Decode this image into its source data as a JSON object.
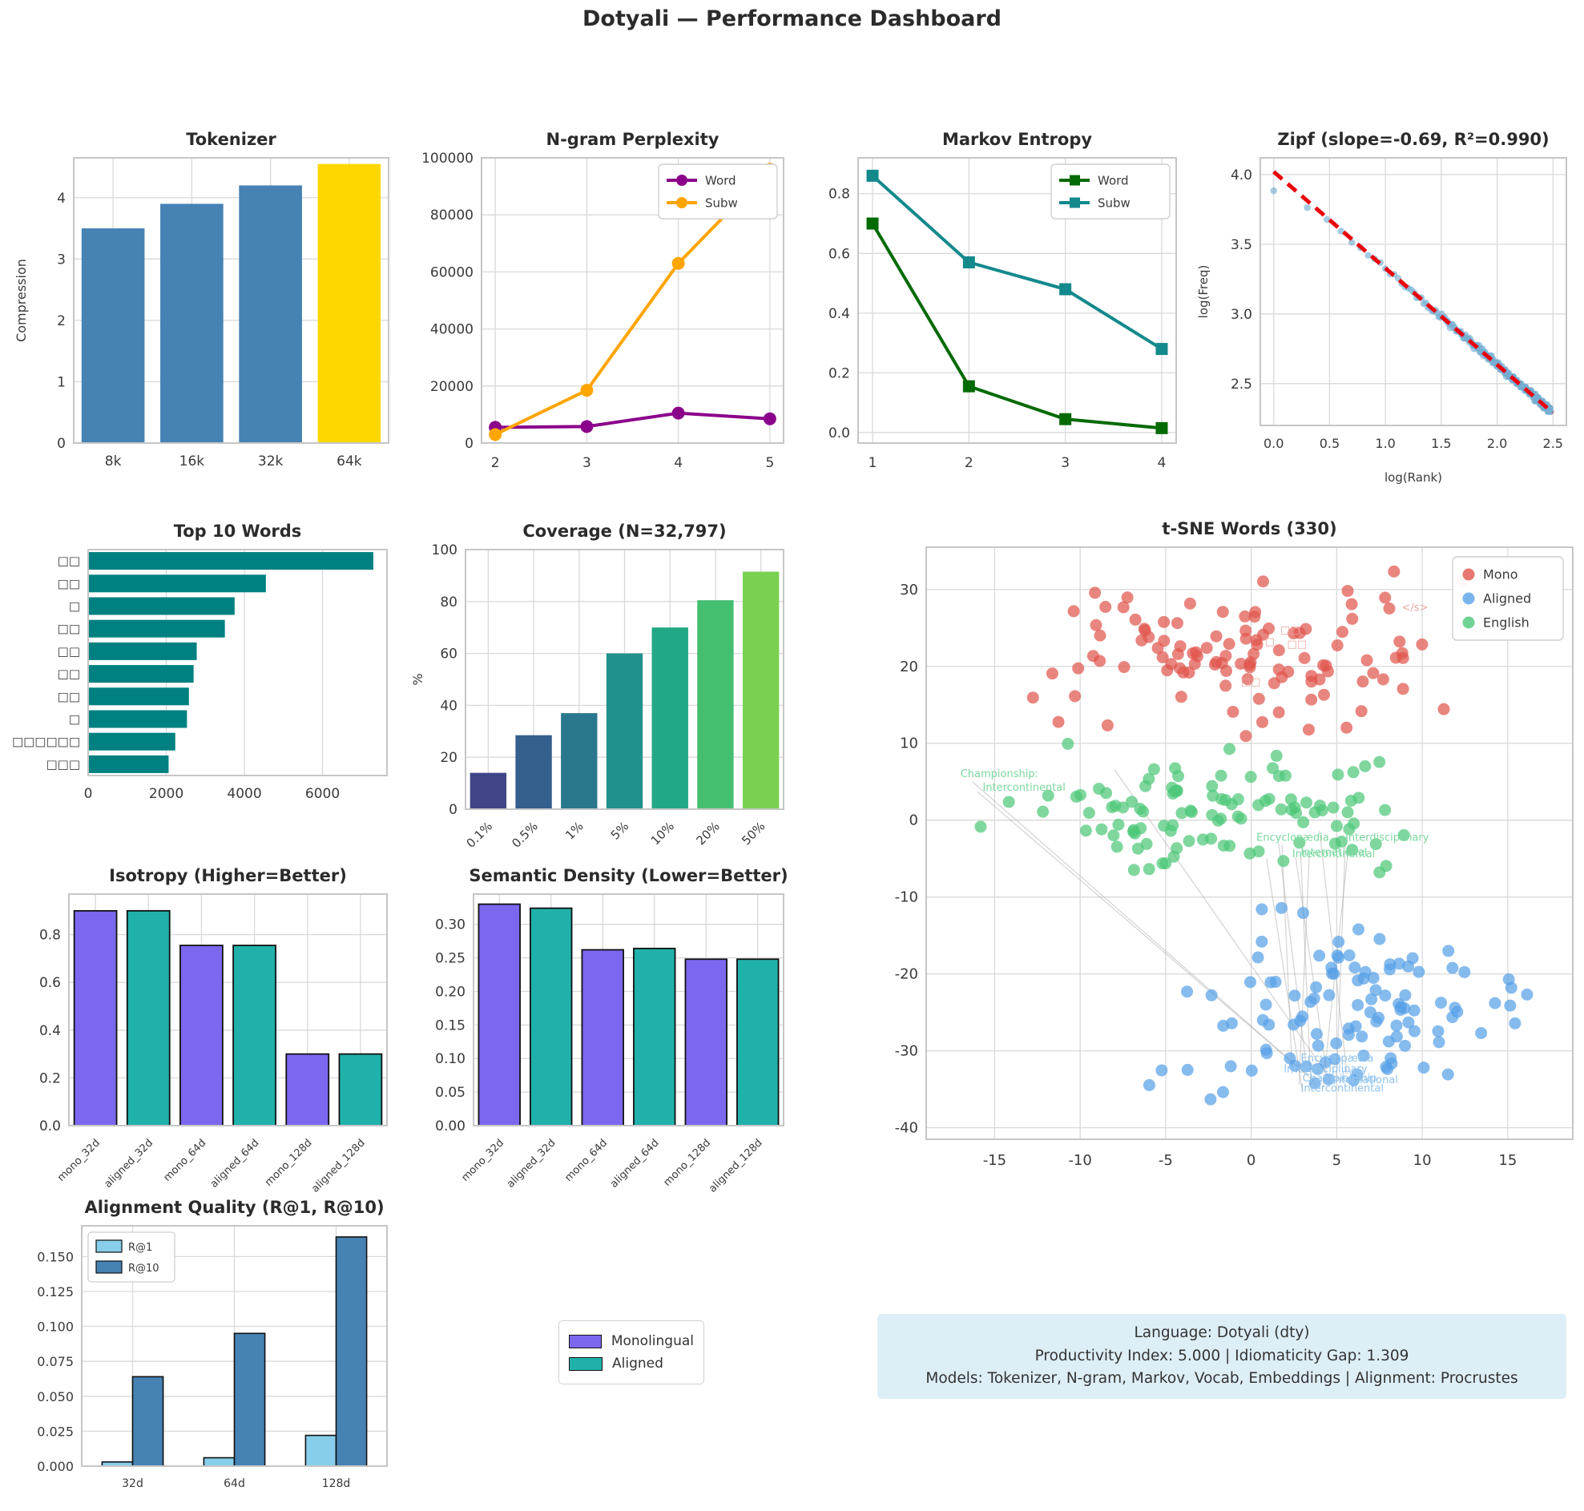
{
  "page": {
    "title": "Dotyali — Performance Dashboard"
  },
  "legend_box": {
    "items": [
      {
        "label": "Monolingual",
        "color": "#7B68EE"
      },
      {
        "label": "Aligned",
        "color": "#20B2AA"
      }
    ]
  },
  "info_box": {
    "lines": [
      "Language: Dotyali (dty)",
      "Productivity Index: 5.000  |  Idiomaticity Gap: 1.309",
      "Models: Tokenizer, N-gram, Markov, Vocab, Embeddings  |  Alignment: Procrustes"
    ]
  },
  "chart_data": {
    "tokenizer": {
      "type": "bar",
      "title": "Tokenizer",
      "categories": [
        "8k",
        "16k",
        "32k",
        "64k"
      ],
      "values": [
        3.5,
        3.9,
        4.2,
        4.55
      ],
      "colors": [
        "#4682B4",
        "#4682B4",
        "#4682B4",
        "#FFD700"
      ],
      "ylabel": "Compression",
      "ylim": [
        0,
        4.65
      ],
      "ytick_vals": [
        0,
        1,
        2,
        3,
        4
      ],
      "ytick_labels": [
        "0",
        "1",
        "2",
        "3",
        "4"
      ]
    },
    "ngram": {
      "type": "line",
      "title": "N-gram Perplexity",
      "x": [
        2,
        3,
        4,
        5
      ],
      "series": [
        {
          "name": "Word",
          "color": "#8B008B",
          "marker": "circle",
          "values": [
            5500,
            5800,
            10500,
            8500
          ]
        },
        {
          "name": "Subw",
          "color": "#FFA500",
          "marker": "circle",
          "values": [
            3000,
            18500,
            63000,
            96000
          ]
        }
      ],
      "xlim": [
        1.85,
        5.15
      ],
      "ylim": [
        0,
        100000
      ],
      "xtick_vals": [
        2,
        3,
        4,
        5
      ],
      "xtick_labels": [
        "2",
        "3",
        "4",
        "5"
      ],
      "ytick_vals": [
        0,
        20000,
        40000,
        60000,
        80000,
        100000
      ],
      "ytick_labels": [
        "0",
        "20000",
        "40000",
        "60000",
        "80000",
        "100000"
      ],
      "legend_pos": "tr"
    },
    "markov": {
      "type": "line",
      "title": "Markov Entropy",
      "x": [
        1,
        2,
        3,
        4
      ],
      "series": [
        {
          "name": "Word",
          "color": "#046A04",
          "marker": "square",
          "values": [
            0.7,
            0.155,
            0.045,
            0.015
          ]
        },
        {
          "name": "Subw",
          "color": "#13898C",
          "marker": "square",
          "values": [
            0.86,
            0.57,
            0.48,
            0.28
          ]
        }
      ],
      "xlim": [
        0.85,
        4.15
      ],
      "ylim": [
        -0.035,
        0.92
      ],
      "xtick_vals": [
        1,
        2,
        3,
        4
      ],
      "xtick_labels": [
        "1",
        "2",
        "3",
        "4"
      ],
      "ytick_vals": [
        0.0,
        0.2,
        0.4,
        0.6,
        0.8
      ],
      "ytick_labels": [
        "0.0",
        "0.2",
        "0.4",
        "0.6",
        "0.8"
      ],
      "legend_pos": "tr"
    },
    "zipf": {
      "type": "scatter",
      "title": "Zipf (slope=-0.69, R²=0.990)",
      "xlabel": "log(Rank)",
      "ylabel": "log(Freq)",
      "xlim": [
        -0.12,
        2.62
      ],
      "ylim": [
        2.2,
        4.12
      ],
      "xtick_vals": [
        0.0,
        0.5,
        1.0,
        1.5,
        2.0,
        2.5
      ],
      "xtick_labels": [
        "0.0",
        "0.5",
        "1.0",
        "1.5",
        "2.0",
        "2.5"
      ],
      "ytick_vals": [
        2.5,
        3.0,
        3.5,
        4.0
      ],
      "ytick_labels": [
        "2.5",
        "3.0",
        "3.5",
        "4.0"
      ],
      "point_color": "#74ADD1",
      "n_ranks": 300,
      "intercept": 4.02,
      "slope": -0.692,
      "first_dip": 0.14,
      "dip_rate": 1.2,
      "noise": 0.018,
      "seed": 42,
      "trend": {
        "color": "#E8000B",
        "x0": 0.0,
        "y0": 4.02,
        "x1": 2.5,
        "y1": 2.29
      }
    },
    "top_words": {
      "type": "hbar",
      "title": "Top 10 Words",
      "labels": [
        "□□",
        "□□",
        "□",
        "□□",
        "□□",
        "□□",
        "□□",
        "□",
        "□□□□□□",
        "□□□"
      ],
      "values": [
        7300,
        4550,
        3750,
        3500,
        2780,
        2700,
        2580,
        2530,
        2230,
        2060
      ],
      "color": "#008080",
      "xlim": [
        0,
        7650
      ],
      "xtick_vals": [
        0,
        2000,
        4000,
        6000
      ],
      "xtick_labels": [
        "0",
        "2000",
        "4000",
        "6000"
      ]
    },
    "coverage": {
      "type": "bar",
      "title": "Coverage (N=32,797)",
      "categories": [
        "0.1%",
        "0.5%",
        "1%",
        "5%",
        "10%",
        "20%",
        "50%"
      ],
      "values": [
        14,
        28.5,
        37,
        60,
        70,
        80.5,
        91.5
      ],
      "colors": [
        "#414487",
        "#355F8D",
        "#2A788E",
        "#21918C",
        "#22A884",
        "#44BF70",
        "#7AD151"
      ],
      "ylabel": "%",
      "ylim": [
        0,
        100
      ],
      "ytick_vals": [
        0,
        20,
        40,
        60,
        80,
        100
      ],
      "ytick_labels": [
        "0",
        "20",
        "40",
        "60",
        "80",
        "100"
      ],
      "rotate_x": 45
    },
    "tsne": {
      "type": "scatter_clusters",
      "title": "t-SNE Words (330)",
      "xlim": [
        -19,
        18.8
      ],
      "ylim": [
        -41.5,
        35.5
      ],
      "xtick_vals": [
        -15,
        -10,
        -5,
        0,
        5,
        10,
        15
      ],
      "xtick_labels": [
        "-15",
        "-10",
        "-5",
        "0",
        "5",
        "10",
        "15"
      ],
      "ytick_vals": [
        -40,
        -30,
        -20,
        -10,
        0,
        10,
        20,
        30
      ],
      "ytick_labels": [
        "-40",
        "-30",
        "-20",
        "-10",
        "0",
        "10",
        "20",
        "30"
      ],
      "clusters": [
        {
          "name": "Mono",
          "color": "#E0564E",
          "n": 110,
          "cx": 0.5,
          "cy": 22.0,
          "sx": 6.3,
          "sy": 4.9,
          "clip": [
            -13.6,
            12.6,
            10.8,
            33.6
          ],
          "seed": 7
        },
        {
          "name": "Aligned",
          "color": "#57A1E8",
          "n": 112,
          "cx": 4.5,
          "cy": -25.0,
          "sx": 5.7,
          "sy": 6.1,
          "clip": [
            -6.6,
            17.7,
            -37.2,
            -11.4
          ],
          "seed": 13
        },
        {
          "name": "English",
          "color": "#4DC878",
          "n": 108,
          "cx": -1.5,
          "cy": 1.0,
          "sx": 6.9,
          "sy": 4.0,
          "clip": [
            -17.7,
            9.0,
            -8.1,
            10.3
          ],
          "seed": 29
        }
      ],
      "legend": [
        "Mono",
        "Aligned",
        "English"
      ],
      "annotations": [
        {
          "text": "Championship:",
          "x": -17.0,
          "y": 5.6,
          "color": "#7bd8a0"
        },
        {
          "text": "Intercontinental",
          "x": -15.7,
          "y": 3.8,
          "color": "#7bd8a0"
        },
        {
          "text": "Encyclopædia",
          "x": 0.3,
          "y": -2.7,
          "color": "#7bd8a0"
        },
        {
          "text": "Interdisciplinary",
          "x": 5.5,
          "y": -2.7,
          "color": "#7bd8a0"
        },
        {
          "text": "International",
          "x": 2.9,
          "y": -4.6,
          "color": "#7bd8a0"
        },
        {
          "text": "Intercontinental",
          "x": 2.4,
          "y": -4.8,
          "color": "#7bd8a0"
        },
        {
          "text": "</s>",
          "x": 8.8,
          "y": 27.2,
          "color": "#eda5a0"
        },
        {
          "text": "□□",
          "x": 1.7,
          "y": 24.3,
          "color": "#eda5a0"
        },
        {
          "text": "□",
          "x": 0.8,
          "y": 22.8,
          "color": "#eda5a0"
        },
        {
          "text": "□□",
          "x": 2.1,
          "y": 22.5,
          "color": "#eda5a0"
        },
        {
          "text": "□□",
          "x": -0.6,
          "y": 17.6,
          "color": "#eda5a0"
        },
        {
          "text": "Encyclopædia",
          "x": 2.9,
          "y": -31.4,
          "color": "#8fc3ee"
        },
        {
          "text": "Interdisciplinary",
          "x": 1.9,
          "y": -32.8,
          "color": "#8fc3ee"
        },
        {
          "text": "Championship",
          "x": 3.0,
          "y": -34.0,
          "color": "#8fc3ee"
        },
        {
          "text": "International",
          "x": 4.7,
          "y": -34.2,
          "color": "#8fc3ee"
        },
        {
          "text": "Intercontinental",
          "x": 2.9,
          "y": -35.3,
          "color": "#8fc3ee"
        },
        {
          "text": "□□",
          "x": 5.3,
          "y": -33.5,
          "color": "#8fc3ee"
        }
      ],
      "connectors": [
        [
          -16.3,
          5.0,
          3.3,
          -33.2
        ],
        [
          -16.0,
          3.7,
          3.7,
          -34.0
        ],
        [
          -8.0,
          6.6,
          4.6,
          -33.6
        ],
        [
          1.6,
          -3.0,
          3.2,
          -31.6
        ],
        [
          1.8,
          -3.2,
          2.4,
          -33.0
        ],
        [
          5.5,
          -3.0,
          5.0,
          -33.4
        ],
        [
          5.7,
          -3.2,
          4.2,
          -34.6
        ],
        [
          2.9,
          -4.6,
          3.5,
          -35.0
        ],
        [
          2.6,
          -4.8,
          4.4,
          -32.8
        ],
        [
          3.4,
          -4.4,
          2.8,
          -34.4
        ],
        [
          4.0,
          -1.4,
          5.6,
          -33.0
        ],
        [
          0.9,
          -5.0,
          3.0,
          -35.4
        ]
      ]
    },
    "isotropy": {
      "type": "bar",
      "title": "Isotropy (Higher=Better)",
      "categories": [
        "mono_32d",
        "aligned_32d",
        "mono_64d",
        "aligned_64d",
        "mono_128d",
        "aligned_128d"
      ],
      "values": [
        0.9,
        0.9,
        0.755,
        0.755,
        0.3,
        0.3
      ],
      "colors": [
        "#7B68EE",
        "#20B2AA",
        "#7B68EE",
        "#20B2AA",
        "#7B68EE",
        "#20B2AA"
      ],
      "edge": "#111111",
      "ylim": [
        0,
        0.97
      ],
      "ytick_vals": [
        0.0,
        0.2,
        0.4,
        0.6,
        0.8
      ],
      "ytick_labels": [
        "0.0",
        "0.2",
        "0.4",
        "0.6",
        "0.8"
      ],
      "rotate_x": 45
    },
    "semantic_density": {
      "type": "bar",
      "title": "Semantic Density (Lower=Better)",
      "categories": [
        "mono_32d",
        "aligned_32d",
        "mono_64d",
        "aligned_64d",
        "mono_128d",
        "aligned_128d"
      ],
      "values": [
        0.33,
        0.324,
        0.262,
        0.264,
        0.248,
        0.248
      ],
      "colors": [
        "#7B68EE",
        "#20B2AA",
        "#7B68EE",
        "#20B2AA",
        "#7B68EE",
        "#20B2AA"
      ],
      "edge": "#111111",
      "ylim": [
        0,
        0.345
      ],
      "ytick_vals": [
        0.0,
        0.05,
        0.1,
        0.15,
        0.2,
        0.25,
        0.3
      ],
      "ytick_labels": [
        "0.00",
        "0.05",
        "0.10",
        "0.15",
        "0.20",
        "0.25",
        "0.30"
      ],
      "rotate_x": 45
    },
    "alignment_quality": {
      "type": "grouped_bar",
      "title": "Alignment Quality (R@1, R@10)",
      "categories": [
        "32d",
        "64d",
        "128d"
      ],
      "series": [
        {
          "name": "R@1",
          "color": "#87CEEB",
          "values": [
            0.003,
            0.006,
            0.022
          ]
        },
        {
          "name": "R@10",
          "color": "#4682B4",
          "values": [
            0.064,
            0.095,
            0.164
          ]
        }
      ],
      "edge": "#111111",
      "ylim": [
        0,
        0.172
      ],
      "ytick_vals": [
        0.0,
        0.025,
        0.05,
        0.075,
        0.1,
        0.125,
        0.15
      ],
      "ytick_labels": [
        "0.000",
        "0.025",
        "0.050",
        "0.075",
        "0.100",
        "0.125",
        "0.150"
      ],
      "legend_pos": "tl"
    }
  }
}
